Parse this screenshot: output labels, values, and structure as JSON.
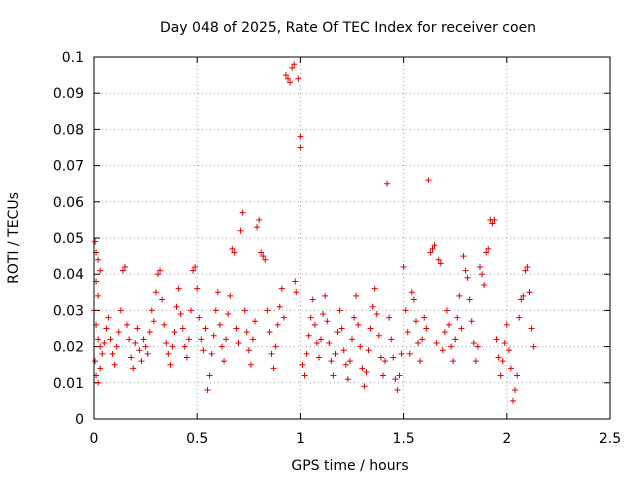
{
  "chart_data": {
    "type": "scatter",
    "title": "Day 048 of 2025, Rate Of TEC Index for receiver coen",
    "xlabel": "GPS time / hours",
    "ylabel": "ROTI / TECUs",
    "xlim": [
      0,
      2.5
    ],
    "ylim": [
      0,
      0.1
    ],
    "xticks": [
      0,
      0.5,
      1,
      1.5,
      2,
      2.5
    ],
    "xtick_labels": [
      "0",
      "0.5",
      "1",
      "1.5",
      "2",
      "2.5"
    ],
    "yticks": [
      0,
      0.01,
      0.02,
      0.03,
      0.04,
      0.05,
      0.06,
      0.07,
      0.08,
      0.09,
      0.1
    ],
    "ytick_labels": [
      "0",
      "0.01",
      "0.02",
      "0.03",
      "0.04",
      "0.05",
      "0.06",
      "0.07",
      "0.08",
      "0.09",
      "0.1"
    ],
    "grid": true,
    "marker": "+",
    "marker_color": "#e00000",
    "series": [
      {
        "points": [
          [
            0.005,
            0.049
          ],
          [
            0.01,
            0.046
          ],
          [
            0.02,
            0.044
          ],
          [
            0.03,
            0.041
          ],
          [
            0.01,
            0.038
          ],
          [
            0.02,
            0.034
          ],
          [
            0.0,
            0.03
          ],
          [
            0.01,
            0.026
          ],
          [
            0.02,
            0.022
          ],
          [
            0.03,
            0.02
          ],
          [
            0.005,
            0.016
          ],
          [
            0.01,
            0.012
          ],
          [
            0.02,
            0.01
          ],
          [
            0.03,
            0.014
          ],
          [
            0.04,
            0.018
          ],
          [
            0.05,
            0.021
          ],
          [
            0.06,
            0.025
          ],
          [
            0.07,
            0.028
          ],
          [
            0.08,
            0.022
          ],
          [
            0.09,
            0.018
          ],
          [
            0.1,
            0.015
          ],
          [
            0.11,
            0.02
          ],
          [
            0.12,
            0.024
          ],
          [
            0.13,
            0.03
          ],
          [
            0.14,
            0.041
          ],
          [
            0.15,
            0.042
          ],
          [
            0.16,
            0.026
          ],
          [
            0.17,
            0.022
          ],
          [
            0.18,
            0.017
          ],
          [
            0.19,
            0.014
          ],
          [
            0.2,
            0.021
          ],
          [
            0.21,
            0.025
          ],
          [
            0.22,
            0.019
          ],
          [
            0.23,
            0.016
          ],
          [
            0.24,
            0.022
          ],
          [
            0.25,
            0.02
          ],
          [
            0.26,
            0.018
          ],
          [
            0.27,
            0.024
          ],
          [
            0.28,
            0.03
          ],
          [
            0.29,
            0.027
          ],
          [
            0.3,
            0.035
          ],
          [
            0.31,
            0.04
          ],
          [
            0.32,
            0.041
          ],
          [
            0.33,
            0.033
          ],
          [
            0.34,
            0.026
          ],
          [
            0.35,
            0.021
          ],
          [
            0.36,
            0.018
          ],
          [
            0.37,
            0.015
          ],
          [
            0.38,
            0.02
          ],
          [
            0.39,
            0.024
          ],
          [
            0.4,
            0.031
          ],
          [
            0.41,
            0.036
          ],
          [
            0.42,
            0.029
          ],
          [
            0.43,
            0.025
          ],
          [
            0.44,
            0.02
          ],
          [
            0.45,
            0.017
          ],
          [
            0.46,
            0.022
          ],
          [
            0.47,
            0.03
          ],
          [
            0.48,
            0.041
          ],
          [
            0.49,
            0.042
          ],
          [
            0.5,
            0.036
          ],
          [
            0.51,
            0.028
          ],
          [
            0.52,
            0.022
          ],
          [
            0.53,
            0.019
          ],
          [
            0.54,
            0.025
          ],
          [
            0.55,
            0.008
          ],
          [
            0.56,
            0.012
          ],
          [
            0.57,
            0.018
          ],
          [
            0.58,
            0.023
          ],
          [
            0.59,
            0.03
          ],
          [
            0.6,
            0.035
          ],
          [
            0.61,
            0.026
          ],
          [
            0.62,
            0.02
          ],
          [
            0.63,
            0.016
          ],
          [
            0.64,
            0.022
          ],
          [
            0.65,
            0.029
          ],
          [
            0.66,
            0.034
          ],
          [
            0.67,
            0.047
          ],
          [
            0.68,
            0.046
          ],
          [
            0.69,
            0.025
          ],
          [
            0.7,
            0.021
          ],
          [
            0.71,
            0.052
          ],
          [
            0.72,
            0.057
          ],
          [
            0.73,
            0.03
          ],
          [
            0.74,
            0.024
          ],
          [
            0.75,
            0.019
          ],
          [
            0.76,
            0.015
          ],
          [
            0.77,
            0.022
          ],
          [
            0.78,
            0.027
          ],
          [
            0.79,
            0.053
          ],
          [
            0.8,
            0.055
          ],
          [
            0.81,
            0.046
          ],
          [
            0.82,
            0.045
          ],
          [
            0.83,
            0.044
          ],
          [
            0.84,
            0.03
          ],
          [
            0.85,
            0.024
          ],
          [
            0.86,
            0.018
          ],
          [
            0.87,
            0.014
          ],
          [
            0.88,
            0.02
          ],
          [
            0.89,
            0.026
          ],
          [
            0.9,
            0.031
          ],
          [
            0.91,
            0.036
          ],
          [
            0.92,
            0.028
          ],
          [
            0.93,
            0.095
          ],
          [
            0.94,
            0.094
          ],
          [
            0.95,
            0.093
          ],
          [
            0.96,
            0.097
          ],
          [
            0.97,
            0.098
          ],
          [
            0.975,
            0.038
          ],
          [
            0.98,
            0.035
          ],
          [
            0.99,
            0.094
          ],
          [
            1.0,
            0.078
          ],
          [
            1.0,
            0.075
          ],
          [
            1.01,
            0.015
          ],
          [
            1.02,
            0.012
          ],
          [
            1.03,
            0.018
          ],
          [
            1.04,
            0.023
          ],
          [
            1.05,
            0.028
          ],
          [
            1.06,
            0.033
          ],
          [
            1.07,
            0.026
          ],
          [
            1.08,
            0.021
          ],
          [
            1.09,
            0.017
          ],
          [
            1.1,
            0.022
          ],
          [
            1.11,
            0.029
          ],
          [
            1.12,
            0.034
          ],
          [
            1.13,
            0.027
          ],
          [
            1.14,
            0.021
          ],
          [
            1.15,
            0.016
          ],
          [
            1.16,
            0.012
          ],
          [
            1.17,
            0.018
          ],
          [
            1.18,
            0.024
          ],
          [
            1.19,
            0.03
          ],
          [
            1.2,
            0.025
          ],
          [
            1.21,
            0.019
          ],
          [
            1.22,
            0.015
          ],
          [
            1.23,
            0.011
          ],
          [
            1.24,
            0.016
          ],
          [
            1.25,
            0.022
          ],
          [
            1.26,
            0.028
          ],
          [
            1.27,
            0.034
          ],
          [
            1.28,
            0.026
          ],
          [
            1.29,
            0.02
          ],
          [
            1.3,
            0.014
          ],
          [
            1.31,
            0.009
          ],
          [
            1.32,
            0.013
          ],
          [
            1.33,
            0.019
          ],
          [
            1.34,
            0.025
          ],
          [
            1.35,
            0.031
          ],
          [
            1.36,
            0.036
          ],
          [
            1.37,
            0.029
          ],
          [
            1.38,
            0.023
          ],
          [
            1.39,
            0.017
          ],
          [
            1.4,
            0.012
          ],
          [
            1.41,
            0.016
          ],
          [
            1.42,
            0.065
          ],
          [
            1.43,
            0.028
          ],
          [
            1.44,
            0.022
          ],
          [
            1.45,
            0.017
          ],
          [
            1.46,
            0.011
          ],
          [
            1.47,
            0.008
          ],
          [
            1.48,
            0.012
          ],
          [
            1.49,
            0.018
          ],
          [
            1.5,
            0.042
          ],
          [
            1.51,
            0.03
          ],
          [
            1.52,
            0.024
          ],
          [
            1.53,
            0.018
          ],
          [
            1.54,
            0.035
          ],
          [
            1.55,
            0.033
          ],
          [
            1.56,
            0.027
          ],
          [
            1.57,
            0.021
          ],
          [
            1.58,
            0.016
          ],
          [
            1.59,
            0.022
          ],
          [
            1.6,
            0.028
          ],
          [
            1.61,
            0.025
          ],
          [
            1.62,
            0.066
          ],
          [
            1.63,
            0.046
          ],
          [
            1.64,
            0.047
          ],
          [
            1.65,
            0.048
          ],
          [
            1.66,
            0.021
          ],
          [
            1.67,
            0.044
          ],
          [
            1.68,
            0.043
          ],
          [
            1.69,
            0.019
          ],
          [
            1.7,
            0.024
          ],
          [
            1.71,
            0.03
          ],
          [
            1.72,
            0.026
          ],
          [
            1.73,
            0.02
          ],
          [
            1.74,
            0.016
          ],
          [
            1.75,
            0.022
          ],
          [
            1.76,
            0.028
          ],
          [
            1.77,
            0.034
          ],
          [
            1.78,
            0.025
          ],
          [
            1.79,
            0.045
          ],
          [
            1.8,
            0.041
          ],
          [
            1.81,
            0.039
          ],
          [
            1.82,
            0.033
          ],
          [
            1.83,
            0.027
          ],
          [
            1.84,
            0.021
          ],
          [
            1.85,
            0.016
          ],
          [
            1.86,
            0.02
          ],
          [
            1.87,
            0.042
          ],
          [
            1.88,
            0.04
          ],
          [
            1.89,
            0.037
          ],
          [
            1.9,
            0.046
          ],
          [
            1.91,
            0.047
          ],
          [
            1.92,
            0.055
          ],
          [
            1.93,
            0.054
          ],
          [
            1.94,
            0.055
          ],
          [
            1.95,
            0.022
          ],
          [
            1.96,
            0.017
          ],
          [
            1.97,
            0.012
          ],
          [
            1.98,
            0.016
          ],
          [
            1.99,
            0.021
          ],
          [
            2.0,
            0.026
          ],
          [
            2.01,
            0.019
          ],
          [
            2.02,
            0.014
          ],
          [
            2.03,
            0.005
          ],
          [
            2.04,
            0.008
          ],
          [
            2.05,
            0.012
          ],
          [
            2.06,
            0.028
          ],
          [
            2.07,
            0.033
          ],
          [
            2.08,
            0.034
          ],
          [
            2.09,
            0.041
          ],
          [
            2.1,
            0.042
          ],
          [
            2.11,
            0.035
          ],
          [
            2.12,
            0.025
          ],
          [
            2.13,
            0.02
          ]
        ]
      }
    ]
  }
}
